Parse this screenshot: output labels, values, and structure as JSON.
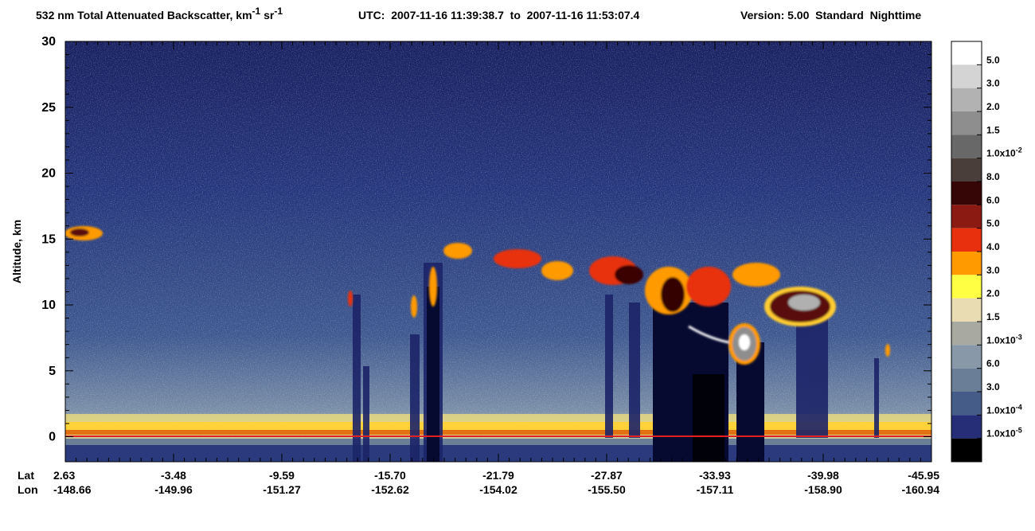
{
  "chart_data": {
    "type": "heatmap",
    "title": {
      "text": "532 nm Total Attenuated Backscatter, km",
      "sup1": "-1",
      "text2": " sr",
      "sup2": "-1"
    },
    "utc": "UTC:  2007-11-16 11:39:38.7  to  2007-11-16 11:53:07.4",
    "version": "Version: 5.00  Standard  Nighttime",
    "y_label": "Altitude, km",
    "ylim": [
      -1.9,
      30
    ],
    "yticks": [
      0,
      5,
      10,
      15,
      20,
      25,
      30
    ],
    "x_row_labels": [
      "Lat",
      "Lon"
    ],
    "lat": [
      "2.63",
      "-3.48",
      "-9.59",
      "-15.70",
      "-21.79",
      "-27.87",
      "-33.93",
      "-39.98",
      "-45.95"
    ],
    "lon": [
      "-148.66",
      "-149.96",
      "-151.27",
      "-152.62",
      "-154.02",
      "-155.50",
      "-157.11",
      "-158.90",
      "-160.94"
    ],
    "colorbar": {
      "colors": [
        "#ffffff",
        "#d4d4d4",
        "#b2b2b2",
        "#8e8e8e",
        "#686868",
        "#4a3e3a",
        "#360606",
        "#8a1a12",
        "#e8300e",
        "#ff9a00",
        "#ffff44",
        "#eadcb2",
        "#a8aaa2",
        "#8898a8",
        "#6a7e98",
        "#455c88",
        "#262e78",
        "#000000"
      ],
      "labels": [
        "5.0",
        "3.0",
        "2.0",
        "1.5",
        {
          "text": "1.0x10",
          "sup": "-2"
        },
        "8.0",
        "6.0",
        "5.0",
        "4.0",
        "3.0",
        "2.0",
        "1.5",
        {
          "text": "1.0x10",
          "sup": "-3"
        },
        "6.0",
        "3.0",
        {
          "text": "1.0x10",
          "sup": "-4"
        },
        {
          "text": "1.0x10",
          "sup": "-5"
        }
      ]
    }
  }
}
